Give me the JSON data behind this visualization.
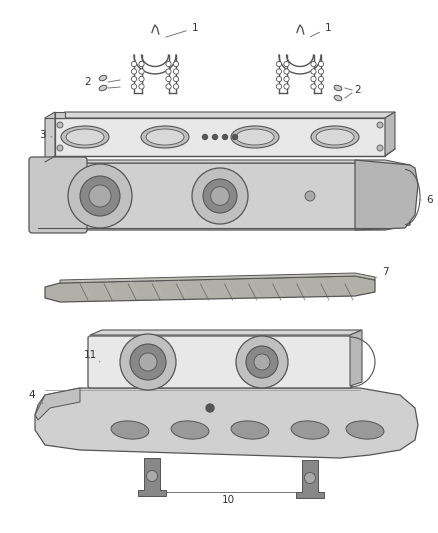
{
  "bg_color": "#ffffff",
  "fig_width": 4.38,
  "fig_height": 5.33,
  "dpi": 100,
  "line_color": "#888888",
  "dark_line": "#555555",
  "text_color": "#333333",
  "fill_light": "#e8e8e8",
  "fill_mid": "#d0d0d0",
  "fill_dark": "#b8b8b8",
  "part_font_size": 7.5
}
